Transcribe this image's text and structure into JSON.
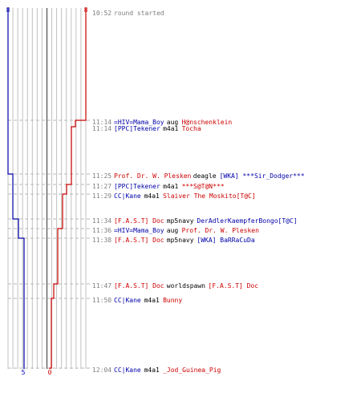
{
  "colors": {
    "blue_team": "#0000aa",
    "red_team": "#cc0000",
    "time": "#808080",
    "neutral": "#000000",
    "grid": "#c0c0c0",
    "center_line": "#606060",
    "dash": "#b8b8b8"
  },
  "chart_data": {
    "type": "line",
    "score_labels": {
      "blue_start": "8",
      "red_start": "8",
      "blue_end": "5",
      "red_end": "0"
    },
    "ylim": [
      0,
      8
    ],
    "series": [
      {
        "team": "blue",
        "steps": [
          8,
          7,
          6,
          5
        ]
      },
      {
        "team": "red",
        "steps": [
          8,
          7,
          6,
          5,
          4,
          3,
          2,
          1,
          0
        ]
      }
    ],
    "events": [
      {
        "time": "11:14",
        "parts": [
          {
            "text": "=HIV=Mama_Boy",
            "team": "blue"
          },
          {
            "text": "aug",
            "team": "neutral"
          },
          {
            "text": "H@nschenklein",
            "team": "red"
          }
        ]
      },
      {
        "time": "11:14",
        "parts": [
          {
            "text": "[PPC]Tekener",
            "team": "blue"
          },
          {
            "text": "m4a1",
            "team": "neutral"
          },
          {
            "text": "Tocha",
            "team": "red"
          }
        ]
      },
      {
        "time": "11:25",
        "parts": [
          {
            "text": "Prof. Dr. W. Plesken",
            "team": "red"
          },
          {
            "text": "deagle",
            "team": "neutral"
          },
          {
            "text": "[WKA] ***Sir_Dodger***",
            "team": "blue"
          }
        ]
      },
      {
        "time": "11:27",
        "parts": [
          {
            "text": "[PPC]Tekener",
            "team": "blue"
          },
          {
            "text": "m4a1",
            "team": "neutral"
          },
          {
            "text": "***S@T@N***",
            "team": "red"
          }
        ]
      },
      {
        "time": "11:29",
        "parts": [
          {
            "text": "CC|Kane",
            "team": "blue"
          },
          {
            "text": "m4a1",
            "team": "neutral"
          },
          {
            "text": "Slaiver The Moskito[T@C]",
            "team": "red"
          }
        ]
      },
      {
        "time": "11:34",
        "parts": [
          {
            "text": "[F.A.S.T] Doc",
            "team": "red"
          },
          {
            "text": "mp5navy",
            "team": "neutral"
          },
          {
            "text": "DerAdlerKaempferBongo[T@C]",
            "team": "blue"
          }
        ]
      },
      {
        "time": "11:36",
        "parts": [
          {
            "text": "=HIV=Mama_Boy",
            "team": "blue"
          },
          {
            "text": "aug",
            "team": "neutral"
          },
          {
            "text": "Prof. Dr. W. Plesken",
            "team": "red"
          }
        ]
      },
      {
        "time": "11:38",
        "parts": [
          {
            "text": "[F.A.S.T] Doc",
            "team": "red"
          },
          {
            "text": "mp5navy",
            "team": "neutral"
          },
          {
            "text": "[WKA] BaRRaCuDa",
            "team": "blue"
          }
        ]
      },
      {
        "time": "11:47",
        "parts": [
          {
            "text": "[F.A.S.T] Doc",
            "team": "red"
          },
          {
            "text": "worldspawn",
            "team": "neutral"
          },
          {
            "text": "[F.A.S.T] Doc",
            "team": "red"
          }
        ]
      },
      {
        "time": "11:50",
        "parts": [
          {
            "text": "CC|Kane",
            "team": "blue"
          },
          {
            "text": "m4a1",
            "team": "neutral"
          },
          {
            "text": "Bunny",
            "team": "red"
          }
        ]
      },
      {
        "time": "12:04",
        "parts": [
          {
            "text": "CC|Kane",
            "team": "blue"
          },
          {
            "text": "m4a1",
            "team": "neutral"
          },
          {
            "text": "_Jod_Guinea_Pig",
            "team": "red"
          }
        ]
      }
    ],
    "start": {
      "time": "10:52",
      "text": "round started"
    }
  }
}
